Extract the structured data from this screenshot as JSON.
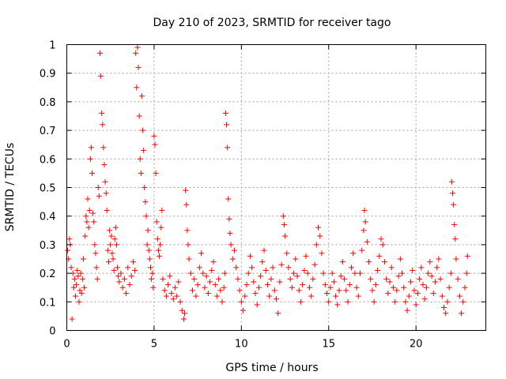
{
  "chart_data": {
    "type": "scatter",
    "title": "Day 210 of 2023, SRMTID for receiver tago",
    "xlabel": "GPS time / hours",
    "ylabel": "SRMTID / TECUs",
    "xlim": [
      0,
      24
    ],
    "ylim": [
      0,
      1
    ],
    "xticks": [
      0,
      5,
      10,
      15,
      20
    ],
    "xtick_labels": [
      "0",
      "5",
      "10",
      "15",
      "20"
    ],
    "yticks": [
      0,
      0.1,
      0.2,
      0.3,
      0.4,
      0.5,
      0.6,
      0.7,
      0.8,
      0.9,
      1
    ],
    "ytick_labels": [
      "0",
      "0.1",
      "0.2",
      "0.3",
      "0.4",
      "0.5",
      "0.6",
      "0.7",
      "0.8",
      "0.9",
      "1"
    ],
    "grid": true,
    "marker": "+",
    "color": "#ff0000",
    "series": [
      {
        "name": "SRMTID",
        "points": [
          [
            0.05,
            0.28
          ],
          [
            0.1,
            0.25
          ],
          [
            0.15,
            0.32
          ],
          [
            0.2,
            0.3
          ],
          [
            0.25,
            0.22
          ],
          [
            0.3,
            0.04
          ],
          [
            0.35,
            0.2
          ],
          [
            0.4,
            0.15
          ],
          [
            0.45,
            0.18
          ],
          [
            0.5,
            0.12
          ],
          [
            0.55,
            0.16
          ],
          [
            0.6,
            0.21
          ],
          [
            0.65,
            0.19
          ],
          [
            0.7,
            0.1
          ],
          [
            0.75,
            0.14
          ],
          [
            0.8,
            0.2
          ],
          [
            0.85,
            0.13
          ],
          [
            0.9,
            0.18
          ],
          [
            0.95,
            0.25
          ],
          [
            1.0,
            0.15
          ],
          [
            1.05,
            0.33
          ],
          [
            1.1,
            0.4
          ],
          [
            1.15,
            0.38
          ],
          [
            1.2,
            0.46
          ],
          [
            1.25,
            0.36
          ],
          [
            1.3,
            0.42
          ],
          [
            1.35,
            0.6
          ],
          [
            1.4,
            0.64
          ],
          [
            1.45,
            0.55
          ],
          [
            1.5,
            0.41
          ],
          [
            1.55,
            0.38
          ],
          [
            1.6,
            0.3
          ],
          [
            1.65,
            0.27
          ],
          [
            1.7,
            0.22
          ],
          [
            1.75,
            0.18
          ],
          [
            1.8,
            0.5
          ],
          [
            1.85,
            0.47
          ],
          [
            1.9,
            0.97
          ],
          [
            1.95,
            0.89
          ],
          [
            2.0,
            0.76
          ],
          [
            2.05,
            0.72
          ],
          [
            2.1,
            0.64
          ],
          [
            2.15,
            0.58
          ],
          [
            2.2,
            0.52
          ],
          [
            2.25,
            0.48
          ],
          [
            2.3,
            0.42
          ],
          [
            2.35,
            0.28
          ],
          [
            2.4,
            0.24
          ],
          [
            2.45,
            0.35
          ],
          [
            2.5,
            0.3
          ],
          [
            2.55,
            0.33
          ],
          [
            2.6,
            0.27
          ],
          [
            2.65,
            0.25
          ],
          [
            2.7,
            0.21
          ],
          [
            2.75,
            0.32
          ],
          [
            2.8,
            0.36
          ],
          [
            2.85,
            0.3
          ],
          [
            2.9,
            0.22
          ],
          [
            2.95,
            0.19
          ],
          [
            3.0,
            0.17
          ],
          [
            3.1,
            0.2
          ],
          [
            3.2,
            0.15
          ],
          [
            3.3,
            0.18
          ],
          [
            3.4,
            0.13
          ],
          [
            3.5,
            0.22
          ],
          [
            3.6,
            0.16
          ],
          [
            3.7,
            0.19
          ],
          [
            3.8,
            0.24
          ],
          [
            3.9,
            0.21
          ],
          [
            3.95,
            0.97
          ],
          [
            4.0,
            0.85
          ],
          [
            4.05,
            0.99
          ],
          [
            4.1,
            0.92
          ],
          [
            4.15,
            0.75
          ],
          [
            4.2,
            0.6
          ],
          [
            4.25,
            0.55
          ],
          [
            4.3,
            0.82
          ],
          [
            4.35,
            0.7
          ],
          [
            4.4,
            0.63
          ],
          [
            4.45,
            0.5
          ],
          [
            4.5,
            0.45
          ],
          [
            4.55,
            0.4
          ],
          [
            4.6,
            0.3
          ],
          [
            4.65,
            0.35
          ],
          [
            4.7,
            0.28
          ],
          [
            4.75,
            0.25
          ],
          [
            4.8,
            0.22
          ],
          [
            4.85,
            0.18
          ],
          [
            4.9,
            0.2
          ],
          [
            4.95,
            0.15
          ],
          [
            5.0,
            0.68
          ],
          [
            5.05,
            0.65
          ],
          [
            5.1,
            0.55
          ],
          [
            5.15,
            0.38
          ],
          [
            5.2,
            0.32
          ],
          [
            5.25,
            0.28
          ],
          [
            5.3,
            0.26
          ],
          [
            5.35,
            0.3
          ],
          [
            5.4,
            0.36
          ],
          [
            5.45,
            0.42
          ],
          [
            5.5,
            0.18
          ],
          [
            5.6,
            0.14
          ],
          [
            5.7,
            0.12
          ],
          [
            5.8,
            0.16
          ],
          [
            5.9,
            0.19
          ],
          [
            6.0,
            0.13
          ],
          [
            6.1,
            0.11
          ],
          [
            6.2,
            0.15
          ],
          [
            6.3,
            0.12
          ],
          [
            6.4,
            0.17
          ],
          [
            6.5,
            0.1
          ],
          [
            6.6,
            0.07
          ],
          [
            6.7,
            0.04
          ],
          [
            6.75,
            0.06
          ],
          [
            6.8,
            0.49
          ],
          [
            6.85,
            0.44
          ],
          [
            6.9,
            0.35
          ],
          [
            6.95,
            0.3
          ],
          [
            7.0,
            0.25
          ],
          [
            7.1,
            0.2
          ],
          [
            7.2,
            0.14
          ],
          [
            7.3,
            0.18
          ],
          [
            7.4,
            0.12
          ],
          [
            7.5,
            0.16
          ],
          [
            7.6,
            0.22
          ],
          [
            7.7,
            0.27
          ],
          [
            7.8,
            0.2
          ],
          [
            7.9,
            0.15
          ],
          [
            8.0,
            0.19
          ],
          [
            8.1,
            0.13
          ],
          [
            8.2,
            0.17
          ],
          [
            8.3,
            0.21
          ],
          [
            8.4,
            0.24
          ],
          [
            8.5,
            0.16
          ],
          [
            8.6,
            0.12
          ],
          [
            8.7,
            0.18
          ],
          [
            8.8,
            0.14
          ],
          [
            8.9,
            0.1
          ],
          [
            9.0,
            0.15
          ],
          [
            9.05,
            0.2
          ],
          [
            9.1,
            0.76
          ],
          [
            9.15,
            0.72
          ],
          [
            9.2,
            0.64
          ],
          [
            9.25,
            0.46
          ],
          [
            9.3,
            0.39
          ],
          [
            9.35,
            0.34
          ],
          [
            9.4,
            0.3
          ],
          [
            9.5,
            0.25
          ],
          [
            9.6,
            0.28
          ],
          [
            9.7,
            0.22
          ],
          [
            9.8,
            0.18
          ],
          [
            9.9,
            0.14
          ],
          [
            10.0,
            0.1
          ],
          [
            10.1,
            0.07
          ],
          [
            10.2,
            0.12
          ],
          [
            10.3,
            0.16
          ],
          [
            10.4,
            0.2
          ],
          [
            10.5,
            0.26
          ],
          [
            10.6,
            0.22
          ],
          [
            10.7,
            0.17
          ],
          [
            10.8,
            0.13
          ],
          [
            10.9,
            0.09
          ],
          [
            11.0,
            0.15
          ],
          [
            11.1,
            0.19
          ],
          [
            11.2,
            0.24
          ],
          [
            11.3,
            0.28
          ],
          [
            11.4,
            0.21
          ],
          [
            11.5,
            0.16
          ],
          [
            11.6,
            0.12
          ],
          [
            11.7,
            0.18
          ],
          [
            11.8,
            0.22
          ],
          [
            11.9,
            0.14
          ],
          [
            12.0,
            0.11
          ],
          [
            12.1,
            0.06
          ],
          [
            12.2,
            0.17
          ],
          [
            12.3,
            0.23
          ],
          [
            12.4,
            0.4
          ],
          [
            12.45,
            0.37
          ],
          [
            12.5,
            0.33
          ],
          [
            12.6,
            0.27
          ],
          [
            12.7,
            0.22
          ],
          [
            12.8,
            0.18
          ],
          [
            12.9,
            0.15
          ],
          [
            13.0,
            0.2
          ],
          [
            13.1,
            0.25
          ],
          [
            13.2,
            0.19
          ],
          [
            13.3,
            0.14
          ],
          [
            13.4,
            0.1
          ],
          [
            13.5,
            0.16
          ],
          [
            13.6,
            0.21
          ],
          [
            13.7,
            0.26
          ],
          [
            13.8,
            0.2
          ],
          [
            13.9,
            0.15
          ],
          [
            14.0,
            0.12
          ],
          [
            14.1,
            0.18
          ],
          [
            14.2,
            0.23
          ],
          [
            14.3,
            0.3
          ],
          [
            14.4,
            0.36
          ],
          [
            14.5,
            0.33
          ],
          [
            14.6,
            0.27
          ],
          [
            14.7,
            0.2
          ],
          [
            14.8,
            0.16
          ],
          [
            14.9,
            0.13
          ],
          [
            15.0,
            0.1
          ],
          [
            15.1,
            0.15
          ],
          [
            15.2,
            0.2
          ],
          [
            15.3,
            0.17
          ],
          [
            15.4,
            0.12
          ],
          [
            15.5,
            0.09
          ],
          [
            15.6,
            0.14
          ],
          [
            15.7,
            0.19
          ],
          [
            15.8,
            0.24
          ],
          [
            15.9,
            0.18
          ],
          [
            16.0,
            0.14
          ],
          [
            16.1,
            0.1
          ],
          [
            16.2,
            0.16
          ],
          [
            16.3,
            0.22
          ],
          [
            16.4,
            0.27
          ],
          [
            16.5,
            0.2
          ],
          [
            16.6,
            0.15
          ],
          [
            16.7,
            0.12
          ],
          [
            16.8,
            0.2
          ],
          [
            16.9,
            0.28
          ],
          [
            17.0,
            0.35
          ],
          [
            17.05,
            0.42
          ],
          [
            17.1,
            0.38
          ],
          [
            17.2,
            0.31
          ],
          [
            17.3,
            0.24
          ],
          [
            17.4,
            0.18
          ],
          [
            17.5,
            0.14
          ],
          [
            17.6,
            0.1
          ],
          [
            17.7,
            0.16
          ],
          [
            17.8,
            0.21
          ],
          [
            17.9,
            0.26
          ],
          [
            18.0,
            0.32
          ],
          [
            18.1,
            0.3
          ],
          [
            18.2,
            0.24
          ],
          [
            18.3,
            0.18
          ],
          [
            18.4,
            0.13
          ],
          [
            18.5,
            0.17
          ],
          [
            18.6,
            0.22
          ],
          [
            18.7,
            0.15
          ],
          [
            18.8,
            0.1
          ],
          [
            18.9,
            0.14
          ],
          [
            19.0,
            0.19
          ],
          [
            19.1,
            0.25
          ],
          [
            19.2,
            0.2
          ],
          [
            19.3,
            0.15
          ],
          [
            19.4,
            0.1
          ],
          [
            19.5,
            0.07
          ],
          [
            19.6,
            0.12
          ],
          [
            19.7,
            0.17
          ],
          [
            19.8,
            0.21
          ],
          [
            19.9,
            0.14
          ],
          [
            20.0,
            0.09
          ],
          [
            20.1,
            0.13
          ],
          [
            20.2,
            0.18
          ],
          [
            20.3,
            0.22
          ],
          [
            20.4,
            0.16
          ],
          [
            20.5,
            0.11
          ],
          [
            20.6,
            0.15
          ],
          [
            20.7,
            0.2
          ],
          [
            20.8,
            0.24
          ],
          [
            20.9,
            0.19
          ],
          [
            21.0,
            0.13
          ],
          [
            21.1,
            0.17
          ],
          [
            21.2,
            0.22
          ],
          [
            21.3,
            0.25
          ],
          [
            21.4,
            0.18
          ],
          [
            21.5,
            0.12
          ],
          [
            21.6,
            0.08
          ],
          [
            21.7,
            0.06
          ],
          [
            21.8,
            0.1
          ],
          [
            21.9,
            0.15
          ],
          [
            22.0,
            0.2
          ],
          [
            22.05,
            0.52
          ],
          [
            22.1,
            0.48
          ],
          [
            22.15,
            0.44
          ],
          [
            22.2,
            0.37
          ],
          [
            22.25,
            0.32
          ],
          [
            22.3,
            0.25
          ],
          [
            22.4,
            0.18
          ],
          [
            22.5,
            0.12
          ],
          [
            22.6,
            0.06
          ],
          [
            22.7,
            0.1
          ],
          [
            22.8,
            0.15
          ],
          [
            22.9,
            0.2
          ],
          [
            22.95,
            0.26
          ]
        ]
      }
    ]
  }
}
